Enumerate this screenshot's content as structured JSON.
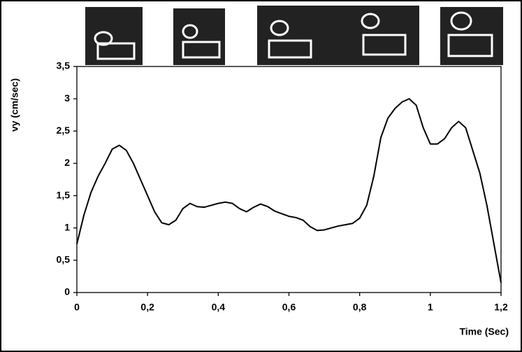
{
  "chart_data": {
    "type": "line",
    "x_label": "Time (Sec)",
    "y_label": "vy (cm/sec)",
    "x": [
      0,
      0.02,
      0.04,
      0.06,
      0.08,
      0.1,
      0.12,
      0.14,
      0.16,
      0.18,
      0.2,
      0.22,
      0.24,
      0.26,
      0.28,
      0.3,
      0.32,
      0.34,
      0.36,
      0.38,
      0.4,
      0.42,
      0.44,
      0.46,
      0.48,
      0.5,
      0.52,
      0.54,
      0.56,
      0.58,
      0.6,
      0.62,
      0.64,
      0.66,
      0.68,
      0.7,
      0.72,
      0.74,
      0.76,
      0.78,
      0.8,
      0.82,
      0.84,
      0.86,
      0.88,
      0.9,
      0.92,
      0.94,
      0.96,
      0.98,
      1.0,
      1.02,
      1.04,
      1.06,
      1.08,
      1.1,
      1.12,
      1.14,
      1.16,
      1.18,
      1.2
    ],
    "values": [
      0.75,
      1.2,
      1.55,
      1.8,
      2.0,
      2.22,
      2.28,
      2.2,
      2.0,
      1.75,
      1.5,
      1.25,
      1.08,
      1.05,
      1.12,
      1.3,
      1.38,
      1.33,
      1.32,
      1.35,
      1.38,
      1.4,
      1.38,
      1.3,
      1.25,
      1.32,
      1.37,
      1.33,
      1.26,
      1.22,
      1.18,
      1.16,
      1.12,
      1.02,
      0.96,
      0.97,
      1.0,
      1.03,
      1.05,
      1.07,
      1.15,
      1.35,
      1.8,
      2.4,
      2.7,
      2.85,
      2.95,
      3.0,
      2.9,
      2.55,
      2.3,
      2.3,
      2.38,
      2.55,
      2.65,
      2.55,
      2.2,
      1.85,
      1.35,
      0.75,
      0.15
    ],
    "color": "#000000",
    "xlim": [
      0,
      1.2
    ],
    "xticks": [
      0,
      {
        "value": 0.2,
        "label": "0,2"
      },
      {
        "value": 0.4,
        "label": "0,4"
      },
      {
        "value": 0.6,
        "label": "0,6"
      },
      {
        "value": 0.8,
        "label": "0,8"
      },
      1,
      {
        "value": 1.2,
        "label": "1,2"
      }
    ],
    "ylim": [
      0,
      3.5
    ],
    "yticks": [
      0,
      {
        "value": 0.5,
        "label": "0,5"
      },
      1,
      {
        "value": 1.5,
        "label": "1,5"
      },
      2,
      {
        "value": 2.5,
        "label": "2,5"
      },
      3,
      {
        "value": 3.5,
        "label": "3,5"
      }
    ],
    "grid": false
  }
}
